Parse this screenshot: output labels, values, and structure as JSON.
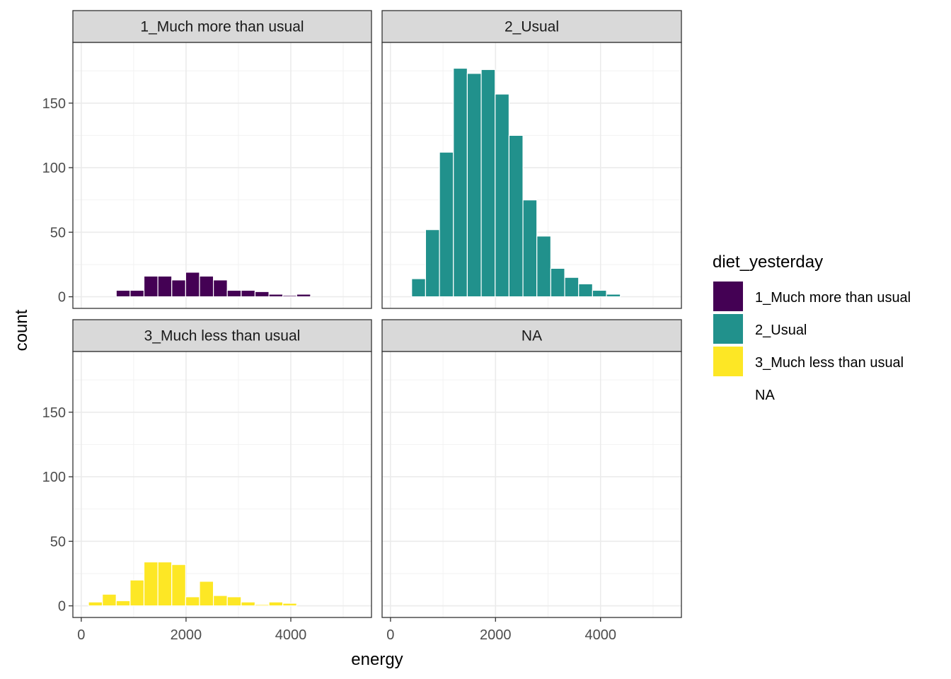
{
  "chart_data": {
    "type": "bar",
    "chart_kind": "faceted-histogram",
    "xlabel": "energy",
    "ylabel": "count",
    "x_range": [
      -160,
      5540
    ],
    "y_range": [
      -9,
      197
    ],
    "x_ticks": [
      0,
      2000,
      4000
    ],
    "x_tick_labels": [
      "0",
      "2000",
      "4000"
    ],
    "y_ticks": [
      0,
      50,
      100,
      150
    ],
    "y_tick_labels": [
      "0",
      "50",
      "100",
      "150"
    ],
    "grid": true,
    "bin_width": 265,
    "legend": {
      "title": "diet_yesterday",
      "position": "right",
      "entries": [
        {
          "label": "1_Much more than usual",
          "color": "#440154"
        },
        {
          "label": "2_Usual",
          "color": "#21918c"
        },
        {
          "label": "3_Much less than usual",
          "color": "#fde725"
        },
        {
          "label": "NA",
          "color": ""
        }
      ]
    },
    "panels": [
      {
        "strip": "1_Much more than usual",
        "color": "#440154",
        "bins": [
          {
            "x": 800,
            "count": 5
          },
          {
            "x": 1065,
            "count": 5
          },
          {
            "x": 1330,
            "count": 16
          },
          {
            "x": 1595,
            "count": 16
          },
          {
            "x": 1860,
            "count": 13
          },
          {
            "x": 2125,
            "count": 19
          },
          {
            "x": 2390,
            "count": 16
          },
          {
            "x": 2655,
            "count": 13
          },
          {
            "x": 2920,
            "count": 5
          },
          {
            "x": 3185,
            "count": 5
          },
          {
            "x": 3450,
            "count": 4
          },
          {
            "x": 3715,
            "count": 2
          },
          {
            "x": 3980,
            "count": 1
          },
          {
            "x": 4245,
            "count": 2
          }
        ]
      },
      {
        "strip": "2_Usual",
        "color": "#21918c",
        "bins": [
          {
            "x": 535,
            "count": 14
          },
          {
            "x": 800,
            "count": 52
          },
          {
            "x": 1065,
            "count": 112
          },
          {
            "x": 1330,
            "count": 177
          },
          {
            "x": 1595,
            "count": 173
          },
          {
            "x": 1860,
            "count": 176
          },
          {
            "x": 2125,
            "count": 157
          },
          {
            "x": 2390,
            "count": 125
          },
          {
            "x": 2655,
            "count": 75
          },
          {
            "x": 2920,
            "count": 47
          },
          {
            "x": 3185,
            "count": 22
          },
          {
            "x": 3450,
            "count": 15
          },
          {
            "x": 3715,
            "count": 10
          },
          {
            "x": 3980,
            "count": 5
          },
          {
            "x": 4245,
            "count": 2
          }
        ]
      },
      {
        "strip": "3_Much less than usual",
        "color": "#fde725",
        "bins": [
          {
            "x": 270,
            "count": 3
          },
          {
            "x": 535,
            "count": 9
          },
          {
            "x": 800,
            "count": 4
          },
          {
            "x": 1065,
            "count": 20
          },
          {
            "x": 1330,
            "count": 34
          },
          {
            "x": 1595,
            "count": 34
          },
          {
            "x": 1860,
            "count": 32
          },
          {
            "x": 2125,
            "count": 7
          },
          {
            "x": 2390,
            "count": 19
          },
          {
            "x": 2655,
            "count": 8
          },
          {
            "x": 2920,
            "count": 7
          },
          {
            "x": 3185,
            "count": 3
          },
          {
            "x": 3450,
            "count": 1
          },
          {
            "x": 3715,
            "count": 3
          },
          {
            "x": 3980,
            "count": 2
          }
        ]
      },
      {
        "strip": "NA",
        "color": "",
        "bins": []
      }
    ]
  }
}
